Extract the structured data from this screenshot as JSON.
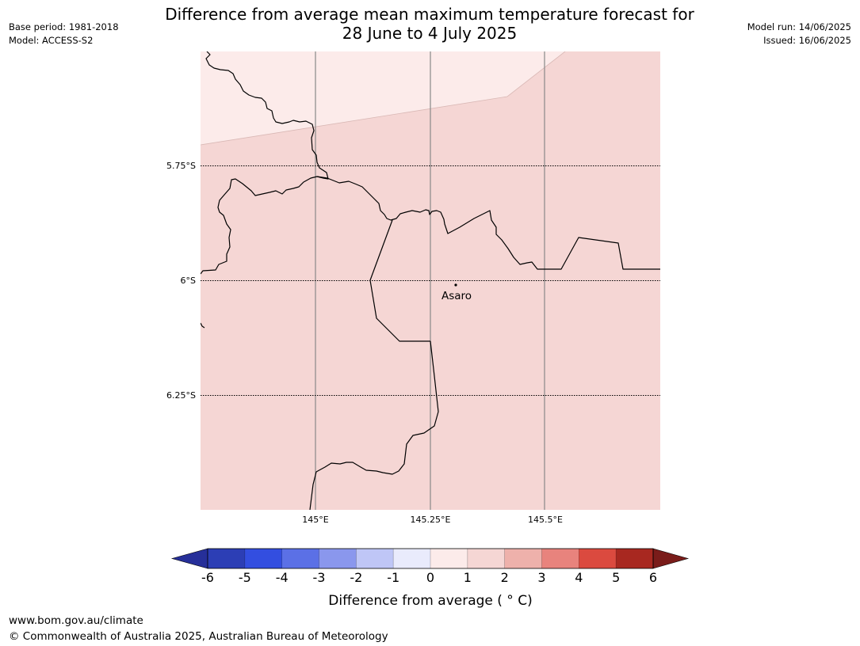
{
  "header": {
    "title_line1": "Difference from average mean maximum temperature forecast for",
    "title_line2": "28 June to 4 July 2025",
    "base_period": "Base period: 1981-2018",
    "model": "Model: ACCESS-S2",
    "model_run": "Model run: 14/06/2025",
    "issued": "Issued: 16/06/2025"
  },
  "map": {
    "latitude_labels": [
      "5.75°S",
      "6°S",
      "6.25°S"
    ],
    "longitude_labels": [
      "145°E",
      "145.25°E",
      "145.5°E"
    ],
    "places": [
      {
        "name": "Asaro"
      }
    ],
    "anomaly_zones": [
      {
        "range": "0 to 1",
        "color": "#fcebea"
      },
      {
        "range": "1 to 2",
        "color": "#f5d6d4"
      }
    ]
  },
  "legend": {
    "ticks": [
      "-6",
      "-5",
      "-4",
      "-3",
      "-2",
      "-1",
      "0",
      "1",
      "2",
      "3",
      "4",
      "5",
      "6"
    ],
    "colors": [
      "#262f99",
      "#2c3eb5",
      "#334ee0",
      "#5b70e6",
      "#8a97ed",
      "#bfc6f6",
      "#e9ebfc",
      "#fcebea",
      "#f5d6d4",
      "#eeb1ab",
      "#e8837d",
      "#db4a3f",
      "#a82820",
      "#7a1c1a"
    ],
    "title": "Difference from average ( ° C)"
  },
  "footer": {
    "url": "www.bom.gov.au/climate",
    "copyright": "© Commonwealth of Australia 2025, Australian Bureau of Meteorology"
  }
}
